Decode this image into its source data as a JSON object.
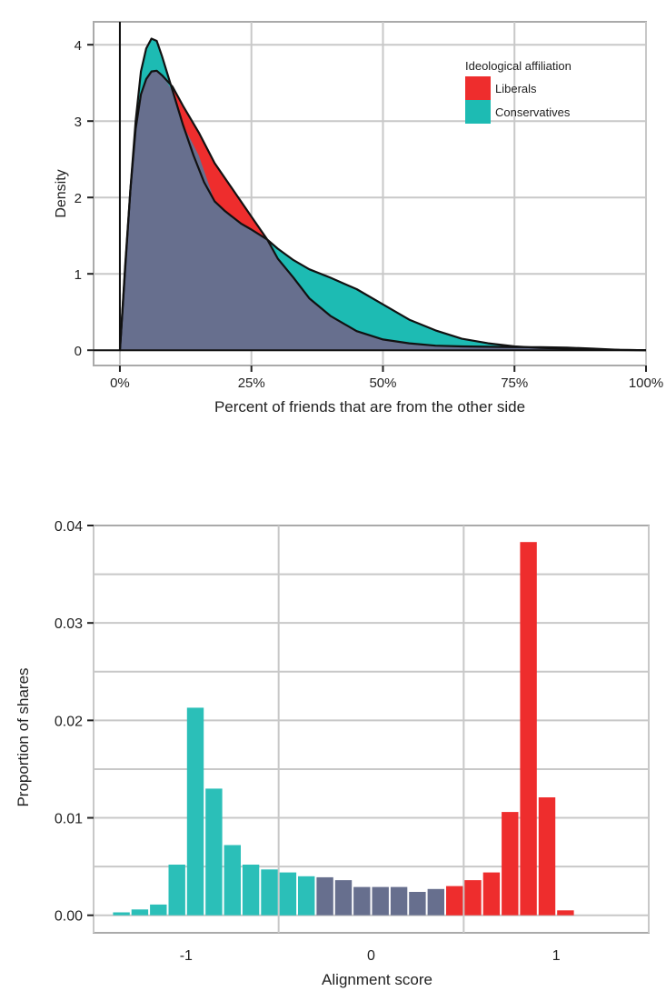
{
  "chart_data": [
    {
      "type": "area",
      "xlabel": "Percent of friends that are from the other side",
      "ylabel": "Density",
      "xlim": [
        -5,
        100
      ],
      "ylim": [
        -0.2,
        4.3
      ],
      "x_ticks": [
        0,
        25,
        50,
        75,
        100
      ],
      "x_tick_labels": [
        "0%",
        "25%",
        "50%",
        "75%",
        "100%"
      ],
      "y_ticks": [
        0,
        1,
        2,
        3,
        4
      ],
      "y_tick_labels": [
        "0",
        "1",
        "2",
        "3",
        "4"
      ],
      "grid": true,
      "legend": {
        "title": "Ideological affiliation",
        "position": "top-right"
      },
      "series": [
        {
          "name": "Liberals",
          "color": "#ee2d2d",
          "points": [
            [
              0,
              0
            ],
            [
              1,
              1.1
            ],
            [
              2,
              2.1
            ],
            [
              3,
              2.9
            ],
            [
              4,
              3.35
            ],
            [
              5,
              3.55
            ],
            [
              6,
              3.65
            ],
            [
              7,
              3.66
            ],
            [
              8,
              3.6
            ],
            [
              10,
              3.45
            ],
            [
              12,
              3.2
            ],
            [
              15,
              2.85
            ],
            [
              18,
              2.45
            ],
            [
              20,
              2.25
            ],
            [
              23,
              1.95
            ],
            [
              25,
              1.75
            ],
            [
              28,
              1.45
            ],
            [
              30,
              1.2
            ],
            [
              33,
              0.95
            ],
            [
              36,
              0.68
            ],
            [
              40,
              0.45
            ],
            [
              45,
              0.25
            ],
            [
              50,
              0.14
            ],
            [
              55,
              0.09
            ],
            [
              60,
              0.06
            ],
            [
              65,
              0.05
            ],
            [
              70,
              0.045
            ],
            [
              75,
              0.04
            ],
            [
              80,
              0.04
            ],
            [
              85,
              0.035
            ],
            [
              90,
              0.02
            ],
            [
              95,
              0.005
            ],
            [
              100,
              0
            ]
          ]
        },
        {
          "name": "Conservatives",
          "color": "#1dbbb3",
          "points": [
            [
              0,
              0
            ],
            [
              1,
              1.05
            ],
            [
              2,
              2.1
            ],
            [
              3,
              3.0
            ],
            [
              4,
              3.65
            ],
            [
              5,
              3.95
            ],
            [
              6,
              4.08
            ],
            [
              7,
              4.05
            ],
            [
              8,
              3.85
            ],
            [
              10,
              3.4
            ],
            [
              12,
              2.95
            ],
            [
              14,
              2.55
            ],
            [
              16,
              2.2
            ],
            [
              18,
              1.95
            ],
            [
              20,
              1.82
            ],
            [
              23,
              1.66
            ],
            [
              25,
              1.58
            ],
            [
              28,
              1.45
            ],
            [
              30,
              1.33
            ],
            [
              33,
              1.18
            ],
            [
              36,
              1.06
            ],
            [
              40,
              0.95
            ],
            [
              43,
              0.86
            ],
            [
              45,
              0.8
            ],
            [
              50,
              0.6
            ],
            [
              55,
              0.4
            ],
            [
              60,
              0.26
            ],
            [
              65,
              0.15
            ],
            [
              70,
              0.09
            ],
            [
              75,
              0.05
            ],
            [
              80,
              0.03
            ],
            [
              85,
              0.02
            ],
            [
              90,
              0.01
            ],
            [
              95,
              0.003
            ],
            [
              100,
              0
            ]
          ]
        }
      ]
    },
    {
      "type": "bar",
      "xlabel": "Alignment score",
      "ylabel": "Proportion of shares",
      "xlim": [
        -1.5,
        1.5
      ],
      "ylim": [
        -0.0018,
        0.04
      ],
      "x_ticks": [
        -1,
        0,
        1
      ],
      "x_tick_labels": [
        "-1",
        "0",
        "1"
      ],
      "y_ticks": [
        0.0,
        0.01,
        0.02,
        0.03,
        0.04
      ],
      "y_tick_labels": [
        "0.00",
        "0.01",
        "0.02",
        "0.03",
        "0.04"
      ],
      "grid": true,
      "bin_width": 0.1,
      "colors": {
        "conservative": "#2bbfb8",
        "neutral": "#676f8e",
        "liberal": "#ee2d2d"
      },
      "bars": [
        {
          "x": -1.35,
          "value": 0.0003,
          "group": "conservative"
        },
        {
          "x": -1.25,
          "value": 0.0006,
          "group": "conservative"
        },
        {
          "x": -1.15,
          "value": 0.0011,
          "group": "conservative"
        },
        {
          "x": -1.05,
          "value": 0.0052,
          "group": "conservative"
        },
        {
          "x": -0.95,
          "value": 0.0213,
          "group": "conservative"
        },
        {
          "x": -0.85,
          "value": 0.013,
          "group": "conservative"
        },
        {
          "x": -0.75,
          "value": 0.0072,
          "group": "conservative"
        },
        {
          "x": -0.65,
          "value": 0.0052,
          "group": "conservative"
        },
        {
          "x": -0.55,
          "value": 0.0047,
          "group": "conservative"
        },
        {
          "x": -0.45,
          "value": 0.0044,
          "group": "conservative"
        },
        {
          "x": -0.35,
          "value": 0.004,
          "group": "conservative"
        },
        {
          "x": -0.25,
          "value": 0.0039,
          "group": "neutral"
        },
        {
          "x": -0.15,
          "value": 0.0036,
          "group": "neutral"
        },
        {
          "x": -0.05,
          "value": 0.0029,
          "group": "neutral"
        },
        {
          "x": 0.05,
          "value": 0.0029,
          "group": "neutral"
        },
        {
          "x": 0.15,
          "value": 0.0029,
          "group": "neutral"
        },
        {
          "x": 0.25,
          "value": 0.0024,
          "group": "neutral"
        },
        {
          "x": 0.35,
          "value": 0.0027,
          "group": "neutral"
        },
        {
          "x": 0.45,
          "value": 0.003,
          "group": "liberal"
        },
        {
          "x": 0.55,
          "value": 0.0036,
          "group": "liberal"
        },
        {
          "x": 0.65,
          "value": 0.0044,
          "group": "liberal"
        },
        {
          "x": 0.75,
          "value": 0.0106,
          "group": "liberal"
        },
        {
          "x": 0.85,
          "value": 0.0383,
          "group": "liberal"
        },
        {
          "x": 0.95,
          "value": 0.0121,
          "group": "liberal"
        },
        {
          "x": 1.05,
          "value": 0.0005,
          "group": "liberal"
        }
      ]
    }
  ]
}
